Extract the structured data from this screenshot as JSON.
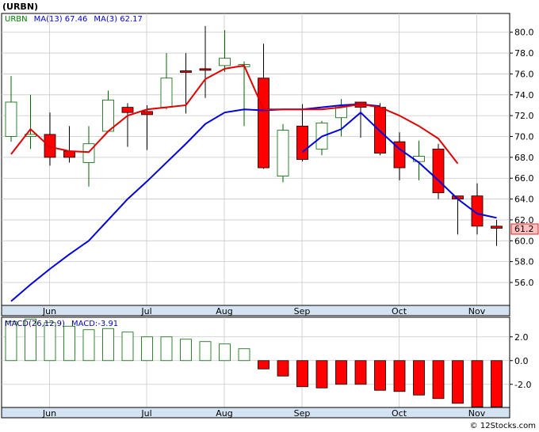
{
  "header": {
    "ticker_label": "(URBN)",
    "price_legend": [
      {
        "text": "URBN",
        "color": "#008000"
      },
      {
        "text": "MA(13)  67.46",
        "color": "#0000dd"
      },
      {
        "text": "MA(3)  62.17",
        "color": "#0000dd"
      }
    ],
    "macd_legend": [
      {
        "text": "MACD(26,12,9)",
        "color": "#000080"
      },
      {
        "text": "MACD:-3.91",
        "color": "#0000dd"
      }
    ],
    "credit": "© 12Stocks.com"
  },
  "colors": {
    "up_candle": "#006400",
    "down_candle": "#ff0000",
    "ma13": "#0000dd",
    "ma3": "#e00000",
    "grid": "#c8c8c8",
    "band": "#d3e3f1",
    "last_price_fill": "#ffc0c0"
  },
  "chart_data": [
    {
      "type": "candlestick",
      "ticker": "URBN",
      "x_tick_labels": [
        "Jun",
        "Jul",
        "Aug",
        "Sep",
        "Oct",
        "Nov"
      ],
      "x_tick_index": [
        1,
        6,
        10,
        14,
        19,
        23
      ],
      "y_ticks": [
        56.0,
        58.0,
        60.0,
        62.0,
        64.0,
        66.0,
        68.0,
        70.0,
        72.0,
        74.0,
        76.0,
        78.0,
        80.0
      ],
      "ylim": [
        53.8,
        81.8
      ],
      "last_price_label": "61.2",
      "candles": [
        {
          "open": 70.0,
          "high": 75.8,
          "low": 69.5,
          "close": 73.3
        },
        {
          "open": 70.0,
          "high": 74.0,
          "low": 68.8,
          "close": 70.2
        },
        {
          "open": 70.2,
          "high": 72.3,
          "low": 67.2,
          "close": 68.0
        },
        {
          "open": 68.6,
          "high": 71.0,
          "low": 67.5,
          "close": 68.0
        },
        {
          "open": 67.5,
          "high": 71.0,
          "low": 65.2,
          "close": 69.3
        },
        {
          "open": 70.5,
          "high": 74.4,
          "low": 70.5,
          "close": 73.5
        },
        {
          "open": 72.8,
          "high": 73.2,
          "low": 69.0,
          "close": 72.3
        },
        {
          "open": 72.4,
          "high": 73.0,
          "low": 68.7,
          "close": 72.1
        },
        {
          "open": 72.8,
          "high": 78.0,
          "low": 72.6,
          "close": 75.6
        },
        {
          "open": 76.3,
          "high": 78.0,
          "low": 72.2,
          "close": 76.2
        },
        {
          "open": 76.5,
          "high": 80.6,
          "low": 73.7,
          "close": 76.4
        },
        {
          "open": 76.8,
          "high": 80.2,
          "low": 76.2,
          "close": 77.5
        },
        {
          "open": 76.7,
          "high": 77.2,
          "low": 71.0,
          "close": 76.9
        },
        {
          "open": 75.6,
          "high": 78.9,
          "low": 66.9,
          "close": 67.0
        },
        {
          "open": 66.2,
          "high": 71.2,
          "low": 65.6,
          "close": 70.6
        },
        {
          "open": 71.0,
          "high": 73.1,
          "low": 67.6,
          "close": 67.8
        },
        {
          "open": 68.8,
          "high": 71.5,
          "low": 68.2,
          "close": 71.3
        },
        {
          "open": 71.8,
          "high": 73.6,
          "low": 70.0,
          "close": 72.9
        },
        {
          "open": 73.3,
          "high": 73.3,
          "low": 69.9,
          "close": 72.8
        },
        {
          "open": 72.8,
          "high": 73.2,
          "low": 68.2,
          "close": 68.4
        },
        {
          "open": 69.5,
          "high": 70.4,
          "low": 65.8,
          "close": 67.0
        },
        {
          "open": 67.6,
          "high": 69.6,
          "low": 65.8,
          "close": 68.1
        },
        {
          "open": 68.8,
          "high": 69.3,
          "low": 64.0,
          "close": 64.6
        },
        {
          "open": 64.3,
          "high": 64.3,
          "low": 60.6,
          "close": 64.0
        },
        {
          "open": 64.3,
          "high": 65.5,
          "low": 60.6,
          "close": 61.4
        },
        {
          "open": 61.4,
          "high": 62.0,
          "low": 59.5,
          "close": 61.2
        }
      ],
      "series": [
        {
          "name": "MA(13)",
          "x_index": [
            0,
            1,
            2,
            3,
            4,
            5,
            6,
            7,
            8,
            9,
            10,
            11,
            12,
            13,
            14,
            15,
            16,
            17,
            18,
            19
          ],
          "values": [
            54.2,
            55.8,
            57.3,
            58.7,
            60.0,
            62.0,
            64.0,
            65.7,
            67.5,
            69.3,
            71.2,
            72.3,
            72.6,
            72.5,
            72.6,
            72.6,
            72.8,
            73.0,
            73.1,
            72.9
          ]
        },
        {
          "name": "MA(3)",
          "x_index": [
            15,
            16,
            17,
            18,
            19,
            20,
            21,
            22,
            23,
            24,
            25
          ],
          "values": [
            68.5,
            70.0,
            70.7,
            72.3,
            70.5,
            68.8,
            67.5,
            65.8,
            64.0,
            62.6,
            62.2
          ]
        },
        {
          "name": "MA(13)",
          "x_index": [
            0,
            1,
            2,
            3,
            4,
            5,
            6,
            7,
            8,
            9,
            10,
            11,
            12,
            13,
            14,
            15,
            16,
            17,
            18,
            19,
            20,
            21,
            22,
            23,
            24
          ],
          "values": [
            68.3,
            70.7,
            69.0,
            68.6,
            68.5,
            70.5,
            72.0,
            72.6,
            72.8,
            73.0,
            75.5,
            76.5,
            76.8,
            72.6,
            72.6,
            72.6,
            72.6,
            72.8,
            73.1,
            72.8,
            72.0,
            71.0,
            69.8,
            67.4,
            null
          ]
        }
      ]
    },
    {
      "type": "bar",
      "title": "MACD(26,12,9)",
      "y_ticks": [
        2.0,
        0.0,
        -2.0
      ],
      "y_tick_labels": [
        "2.0",
        "0.0",
        "-2.0"
      ],
      "ylim": [
        -3.95,
        3.65
      ],
      "x_tick_labels": [
        "Jun",
        "Jul",
        "Aug",
        "Sep",
        "Oct",
        "Nov"
      ],
      "values": [
        3.3,
        3.5,
        3.2,
        2.9,
        2.6,
        2.7,
        2.4,
        2.0,
        2.0,
        1.8,
        1.6,
        1.4,
        1.0,
        -0.7,
        -1.3,
        -2.2,
        -2.3,
        -2.0,
        -2.0,
        -2.5,
        -2.6,
        -2.9,
        -3.2,
        -3.6,
        -3.9,
        -3.9
      ]
    }
  ]
}
